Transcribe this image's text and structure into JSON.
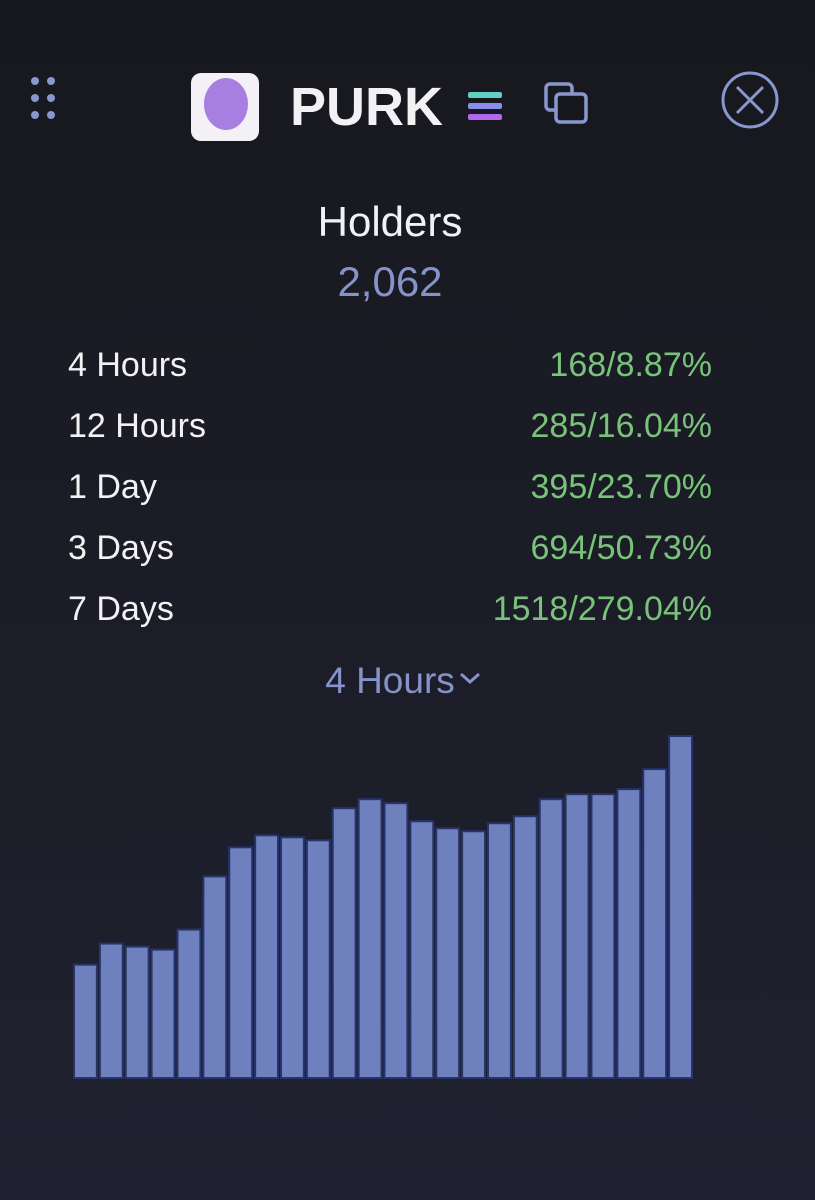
{
  "header": {
    "title": "PURK"
  },
  "holders": {
    "label": "Holders",
    "value": "2,062"
  },
  "stats": [
    {
      "label": "4 Hours",
      "value": "168/8.87%"
    },
    {
      "label": "12 Hours",
      "value": "285/16.04%"
    },
    {
      "label": "1 Day",
      "value": "395/23.70%"
    },
    {
      "label": "3 Days",
      "value": "694/50.73%"
    },
    {
      "label": "7 Days",
      "value": "1518/279.04%"
    }
  ],
  "dropdown": {
    "label": "4 Hours"
  },
  "chart_data": {
    "type": "bar",
    "color": "#6f80be",
    "values": [
      113,
      134,
      131,
      128,
      148,
      201,
      230,
      242,
      240,
      237,
      269,
      278,
      274,
      256,
      249,
      246,
      254,
      261,
      278,
      283,
      283,
      288,
      308,
      341
    ]
  }
}
